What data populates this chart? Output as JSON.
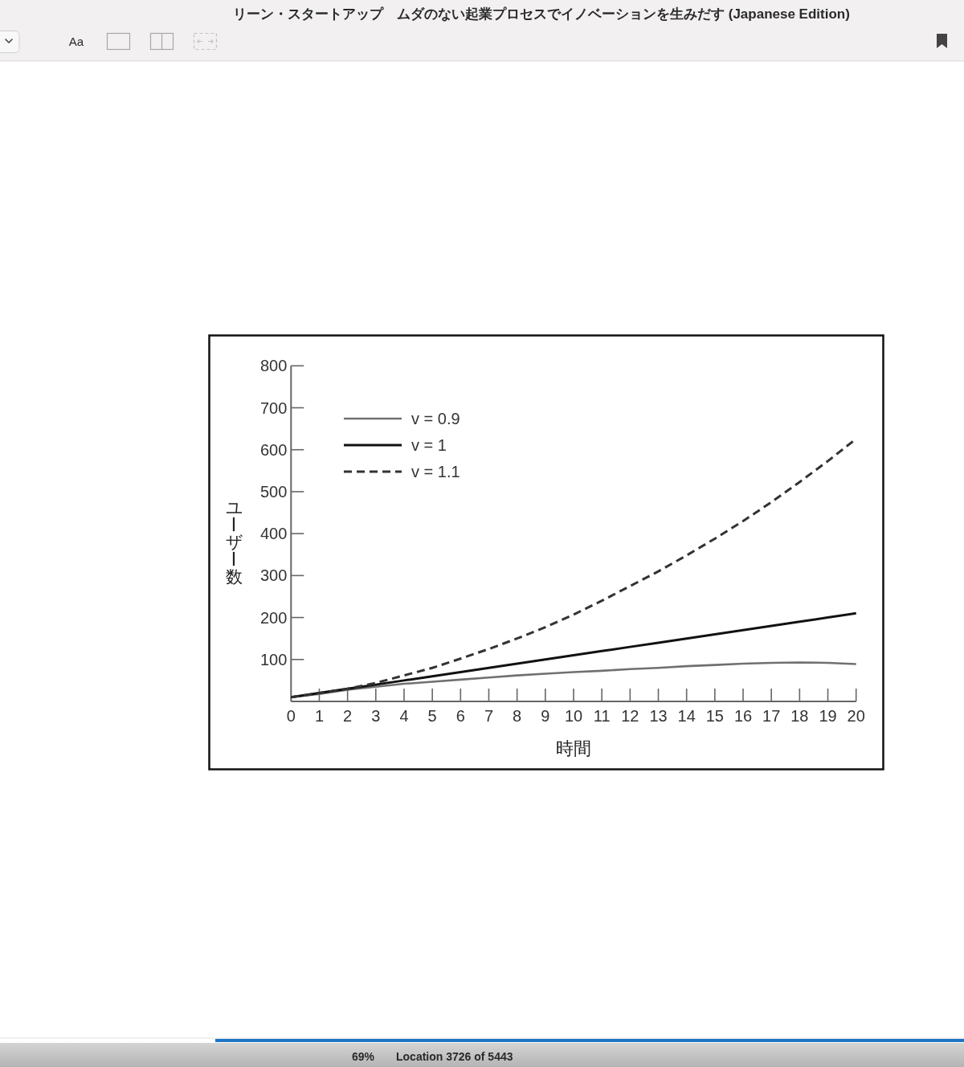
{
  "chart_data": {
    "type": "line",
    "xlabel": "時間",
    "ylabel": "ユーザー数",
    "x": [
      0,
      1,
      2,
      3,
      4,
      5,
      6,
      7,
      8,
      9,
      10,
      11,
      12,
      13,
      14,
      15,
      16,
      17,
      18,
      19,
      20
    ],
    "series": [
      {
        "name": "v = 0.9",
        "color": "#707070",
        "line_style": "solid",
        "values": [
          10,
          18,
          28,
          35,
          42,
          47,
          52,
          57,
          62,
          66,
          70,
          73,
          77,
          80,
          84,
          87,
          90,
          92,
          93,
          92,
          89
        ]
      },
      {
        "name": "v = 1",
        "color": "#111111",
        "line_style": "solid",
        "values": [
          10,
          20,
          30,
          40,
          50,
          60,
          70,
          80,
          90,
          100,
          110,
          120,
          130,
          140,
          150,
          160,
          170,
          180,
          190,
          200,
          210
        ]
      },
      {
        "name": "v = 1.1",
        "color": "#333333",
        "line_style": "dashed",
        "values": [
          10,
          20,
          30,
          44,
          62,
          80,
          102,
          125,
          150,
          177,
          207,
          240,
          275,
          310,
          348,
          388,
          430,
          475,
          523,
          573,
          626
        ]
      }
    ],
    "xlim": [
      0,
      20
    ],
    "xticks": [
      0,
      1,
      2,
      3,
      4,
      5,
      6,
      7,
      8,
      9,
      10,
      11,
      12,
      13,
      14,
      15,
      16,
      17,
      18,
      19,
      20
    ],
    "ylim": [
      0,
      800
    ],
    "yticks": [
      100,
      200,
      300,
      400,
      500,
      600,
      700,
      800
    ],
    "legend": "top left",
    "annotations": [
      "リーン・スタートアップ　ムダのない起業プロセスでイノベーションを生みだす (Japanese Edition)",
      "Aa",
      "69%",
      "Location 3726 of 5443"
    ]
  }
}
